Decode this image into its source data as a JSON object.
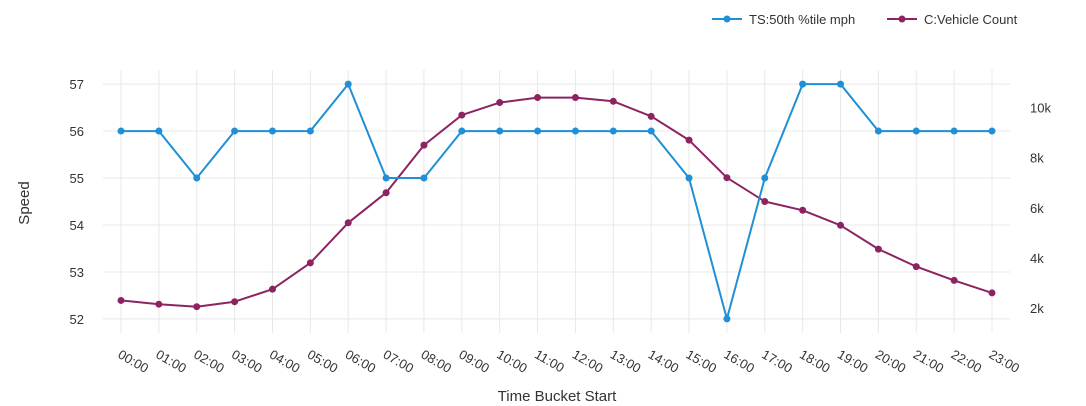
{
  "chart_data": {
    "type": "line",
    "title": "",
    "xlabel": "Time Bucket Start",
    "ylabel": "Speed",
    "y2label": "",
    "categories": [
      "00:00",
      "01:00",
      "02:00",
      "03:00",
      "04:00",
      "05:00",
      "06:00",
      "07:00",
      "08:00",
      "09:00",
      "10:00",
      "11:00",
      "12:00",
      "13:00",
      "14:00",
      "15:00",
      "16:00",
      "17:00",
      "18:00",
      "19:00",
      "20:00",
      "21:00",
      "22:00",
      "23:00"
    ],
    "ylim": [
      51.7,
      57.3
    ],
    "yticks": [
      52,
      53,
      54,
      55,
      56,
      57
    ],
    "y2lim": [
      1000,
      11500
    ],
    "y2ticks": [
      2000,
      4000,
      6000,
      8000,
      10000
    ],
    "y2tick_labels": [
      "2k",
      "4k",
      "6k",
      "8k",
      "10k"
    ],
    "grid": true,
    "legend_position": "top-right",
    "series": [
      {
        "name": "TS:50th %tile mph",
        "axis": "left",
        "color": "#1f8fd6",
        "values": [
          56,
          56,
          55,
          56,
          56,
          56,
          57,
          55,
          55,
          56,
          56,
          56,
          56,
          56,
          56,
          55,
          52,
          55,
          57,
          57,
          56,
          56,
          56,
          56
        ]
      },
      {
        "name": "C:Vehicle Count",
        "axis": "right",
        "color": "#8c2461",
        "values": [
          2300,
          2150,
          2050,
          2250,
          2750,
          3800,
          5400,
          6600,
          8500,
          9700,
          10200,
          10400,
          10400,
          10250,
          9650,
          8700,
          7200,
          6250,
          5900,
          5300,
          4350,
          3650,
          3100,
          2600
        ]
      }
    ]
  }
}
